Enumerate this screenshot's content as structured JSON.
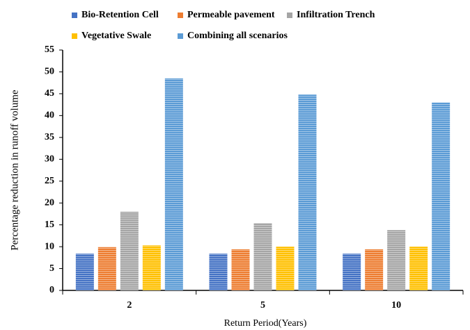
{
  "chart_data": {
    "type": "bar",
    "x_label": "Return Period(Years)",
    "y_label": "Percentage reduction in runoff volume",
    "categories": [
      "2",
      "5",
      "10"
    ],
    "series": [
      {
        "name": "Bio-Retention Cell",
        "color": "#4472c4",
        "values": [
          8.4,
          8.4,
          8.4
        ]
      },
      {
        "name": "Permeable pavement",
        "color": "#ed7d31",
        "values": [
          9.9,
          9.4,
          9.4
        ]
      },
      {
        "name": "Infiltration Trench",
        "color": "#a5a5a5",
        "values": [
          18.0,
          15.4,
          13.8
        ]
      },
      {
        "name": "Vegetative Swale",
        "color": "#ffc000",
        "values": [
          10.3,
          10.0,
          10.0
        ]
      },
      {
        "name": "Combining all scenarios",
        "color": "#5b9bd5",
        "values": [
          48.5,
          44.8,
          43.0
        ]
      }
    ],
    "ylim": [
      0,
      55
    ],
    "yticks": [
      0,
      5,
      10,
      15,
      20,
      25,
      30,
      35,
      40,
      45,
      50,
      55
    ]
  }
}
